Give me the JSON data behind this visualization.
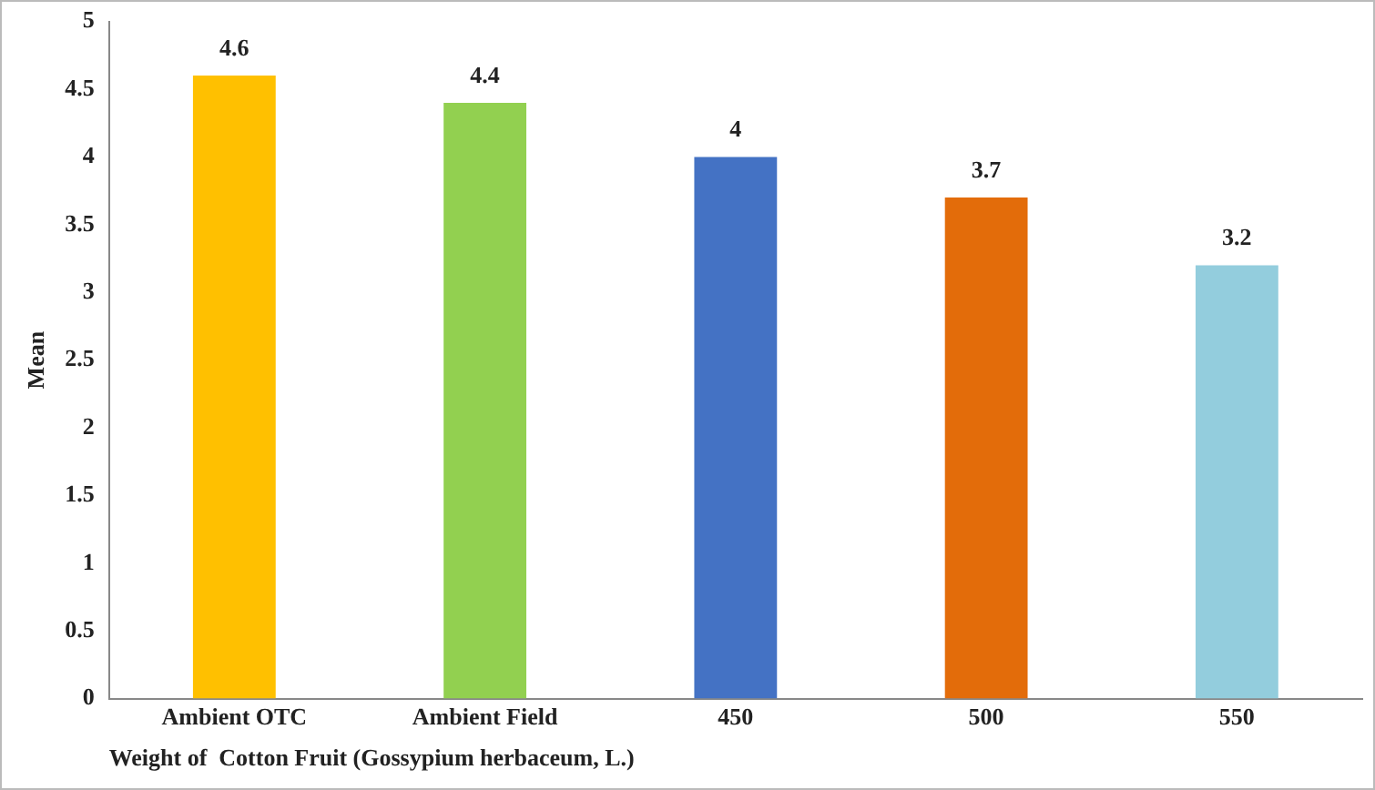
{
  "chart_data": {
    "type": "bar",
    "xlabel": "Weight of  Cotton Fruit (Gossypium herbaceum, L.)",
    "ylabel": "Mean",
    "categories": [
      "Ambient OTC",
      "Ambient Field",
      "450",
      "500",
      "550"
    ],
    "values": [
      4.6,
      4.4,
      4,
      3.7,
      3.2
    ],
    "colors": [
      "#ffc000",
      "#92d050",
      "#4472c4",
      "#e36c0a",
      "#93cddd"
    ],
    "ylim": [
      0,
      5
    ],
    "yticks": [
      0,
      0.5,
      1,
      1.5,
      2,
      2.5,
      3,
      3.5,
      4,
      4.5,
      5
    ],
    "grid": false,
    "legend": false,
    "data_labels": true
  }
}
